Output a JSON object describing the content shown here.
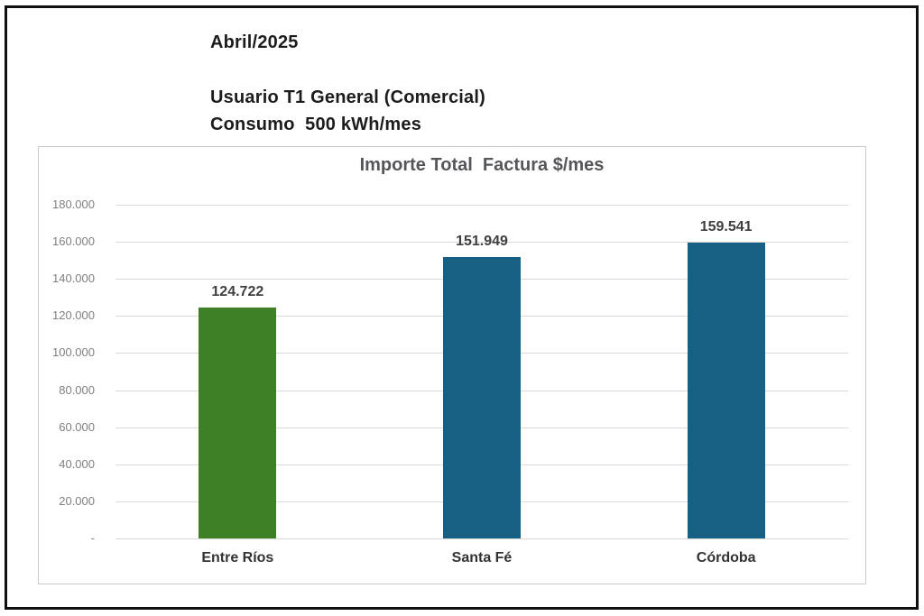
{
  "page": {
    "period": "Abril/2025",
    "user_line": "Usuario T1 General (Comercial)",
    "consumption_line": "Consumo  500 kWh/mes"
  },
  "chart_data": {
    "type": "bar",
    "title": "Importe Total  Factura $/mes",
    "categories": [
      "Entre Ríos",
      "Santa Fé",
      "Córdoba"
    ],
    "values": [
      124722,
      151949,
      159541
    ],
    "value_labels": [
      "124.722",
      "151.949",
      "159.541"
    ],
    "bar_colors": [
      "#3e8026",
      "#176083",
      "#176083"
    ],
    "xlabel": "",
    "ylabel": "",
    "ylim": [
      0,
      180000
    ],
    "ytick_step": 20000,
    "ytick_labels": [
      "180.000",
      "160.000",
      "140.000",
      "120.000",
      "100.000",
      "80.000",
      "60.000",
      "40.000",
      "20.000",
      "-"
    ],
    "grid": true,
    "legend": false
  },
  "colors": {
    "frame_border": "#101010",
    "panel_border": "#c9c9c9",
    "gridline": "#d9d9d9",
    "title_text": "#54565a",
    "tick_text": "#7f7f7f",
    "value_label_text": "#3f3f3f",
    "category_text": "#333333",
    "header_text": "#1c1c1c",
    "green_bar": "#3e8026",
    "blue_bar": "#176083"
  }
}
